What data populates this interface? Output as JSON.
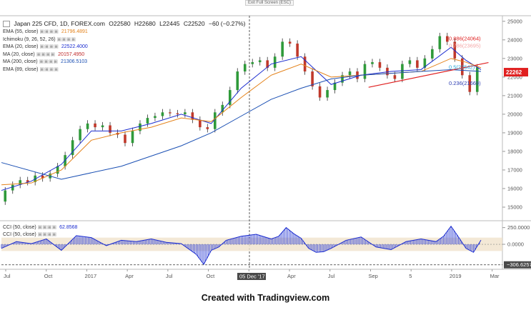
{
  "toolbar": {
    "exit_label": "Exit Full Screen (ESC)"
  },
  "header": {
    "symbol": "Japan 225 CFD, 1D, FOREX.com",
    "open": "O22580",
    "high": "H22680",
    "low": "L22445",
    "close": "C22520",
    "change": "−60 (−0.27%)"
  },
  "legend": [
    {
      "label": "EMA (55, close)",
      "value": "21796.4891",
      "color": "#e4821a"
    },
    {
      "label": "Ichimoku (9, 26, 52, 26)",
      "value": "",
      "color": "#cccccc"
    },
    {
      "label": "EMA (20, close)",
      "value": "22522.4000",
      "color": "#1b2ccf"
    },
    {
      "label": "MA (20, close)",
      "value": "20157.4950",
      "color": "#c02a2a"
    },
    {
      "label": "MA (200, close)",
      "value": "21306.5103",
      "color": "#1a4fb3"
    },
    {
      "label": "EMA (89, close)",
      "value": "",
      "color": "#1a4fb3"
    }
  ],
  "cci_legend": [
    {
      "label": "CCI (50, close)",
      "value": "62.8568",
      "color": "#1b2ccf"
    },
    {
      "label": "CCI (50, close)",
      "value": "",
      "color": "#1b2ccf"
    }
  ],
  "fib_labels": [
    {
      "text": "0.886(24064)",
      "value": 24064,
      "color": "#e02020"
    },
    {
      "text": "0.786(23695)",
      "value": 23695,
      "color": "#f4a6a6"
    },
    {
      "text": "0.5(22542)",
      "value": 22542,
      "color": "#25a4d8"
    },
    {
      "text": "0.236(21669)",
      "value": 21669,
      "color": "#2a3ab0"
    }
  ],
  "price_tag": {
    "text": "22262",
    "value": 22262,
    "color": "#e02020"
  },
  "cci_tag": {
    "text": "306.6257",
    "value": -306.6257
  },
  "date_marker": {
    "text": "05 Dec '17"
  },
  "footer_text": "Created with Tradingview.com",
  "chart_data": {
    "type": "line",
    "title": "Japan 225 CFD, 1D, FOREX.com",
    "x_ticks": [
      "Jul",
      "Oct",
      "2017",
      "Apr",
      "Jul",
      "Oct",
      "8",
      "Apr",
      "Jul",
      "Sep",
      "5",
      "2019",
      "Mar"
    ],
    "y_ticks": [
      15000,
      16000,
      17000,
      18000,
      19000,
      20000,
      21000,
      22000,
      23000,
      24000,
      25000
    ],
    "ylim": [
      14500,
      25300
    ],
    "cci_ticks": [
      250,
      0
    ],
    "cci_tick_labels": [
      "250.0000",
      "0.0000"
    ],
    "cci_ylim": [
      -320,
      310
    ],
    "x_index_range": [
      0,
      128
    ],
    "series": [
      {
        "name": "Price",
        "x": [
          0,
          2,
          4,
          6,
          8,
          10,
          12,
          14,
          16,
          18,
          20,
          22,
          24,
          26,
          28,
          30,
          32,
          34,
          36,
          38,
          40,
          42,
          44,
          46,
          48,
          50,
          52,
          54,
          56,
          58,
          60,
          62,
          64,
          66,
          68,
          70,
          72,
          74,
          76,
          78,
          80,
          82,
          84,
          86,
          88,
          90,
          92,
          94,
          96,
          98,
          100,
          102,
          104,
          106,
          108,
          110,
          112,
          114,
          116,
          118,
          120,
          122,
          124,
          126,
          128
        ],
        "values": [
          15300,
          15900,
          16200,
          16450,
          16350,
          16700,
          16550,
          16800,
          17200,
          17800,
          18600,
          19200,
          19500,
          19300,
          19400,
          19000,
          18900,
          18450,
          19100,
          19500,
          19800,
          19900,
          20100,
          20050,
          20000,
          20100,
          19700,
          19300,
          19200,
          20100,
          20500,
          21300,
          22300,
          22700,
          22800,
          22900,
          22500,
          23100,
          23900,
          23800,
          23100,
          22300,
          21500,
          20900,
          21300,
          21700,
          22100,
          22300,
          21900,
          22700,
          22800,
          22500,
          22100,
          21900,
          22700,
          22900,
          22500,
          23000,
          23500,
          24200,
          23900,
          23000,
          22100,
          21200,
          22520
        ]
      },
      {
        "name": "EMA (20, close)",
        "x": [
          0,
          8,
          16,
          24,
          32,
          40,
          48,
          56,
          64,
          72,
          80,
          88,
          96,
          104,
          112,
          120,
          124,
          128
        ],
        "values": [
          15900,
          16400,
          17300,
          19100,
          19100,
          19500,
          20000,
          19500,
          21400,
          22700,
          23100,
          21600,
          22100,
          22300,
          22400,
          23600,
          22900,
          22400
        ]
      },
      {
        "name": "EMA (55, close)",
        "x": [
          0,
          8,
          16,
          24,
          32,
          40,
          48,
          56,
          64,
          72,
          80,
          88,
          96,
          104,
          112,
          120,
          124,
          128
        ],
        "values": [
          16200,
          16300,
          17000,
          18600,
          19000,
          19300,
          19800,
          19600,
          20900,
          22100,
          22700,
          22000,
          22100,
          22200,
          22300,
          23000,
          22800,
          22500
        ]
      },
      {
        "name": "MA (200, close)",
        "x": [
          0,
          16,
          32,
          48,
          56,
          64,
          72,
          80,
          88,
          96,
          104,
          112,
          120,
          128
        ],
        "values": [
          17400,
          16500,
          17200,
          18300,
          19000,
          19900,
          20800,
          21400,
          21900,
          22100,
          22200,
          22300,
          22400,
          22300
        ]
      },
      {
        "name": "Trend line",
        "x": [
          98,
          130
        ],
        "values": [
          21450,
          22780
        ]
      },
      {
        "name": "CCI (50, close)",
        "x": [
          0,
          4,
          8,
          12,
          16,
          20,
          24,
          28,
          32,
          36,
          40,
          44,
          48,
          52,
          54,
          56,
          58,
          60,
          64,
          68,
          72,
          74,
          76,
          78,
          80,
          82,
          84,
          86,
          88,
          92,
          96,
          100,
          104,
          108,
          112,
          116,
          118,
          120,
          122,
          124,
          126,
          128
        ],
        "values": [
          -60,
          40,
          10,
          80,
          -90,
          130,
          100,
          -20,
          60,
          40,
          80,
          30,
          10,
          -150,
          -300,
          -90,
          -40,
          60,
          120,
          150,
          80,
          120,
          250,
          160,
          90,
          -60,
          -120,
          -110,
          -60,
          60,
          110,
          -40,
          -80,
          40,
          80,
          40,
          120,
          270,
          110,
          -60,
          -120,
          62.9
        ]
      }
    ]
  }
}
